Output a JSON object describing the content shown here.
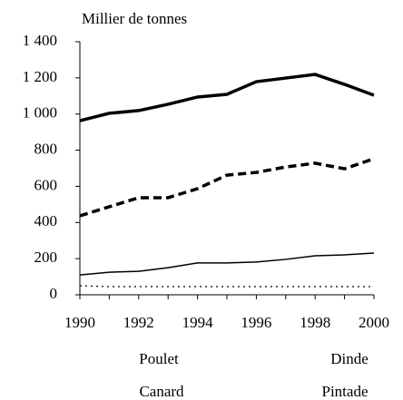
{
  "chart_data": {
    "type": "line",
    "ylabel": "Millier de tonnes",
    "x": [
      1990,
      1991,
      1992,
      1993,
      1994,
      1995,
      1996,
      1997,
      1998,
      1999,
      2000
    ],
    "xlim": [
      1990,
      2000
    ],
    "xticks": [
      1990,
      1992,
      1994,
      1996,
      1998,
      2000
    ],
    "ylim": [
      0,
      1400
    ],
    "yticks": [
      0,
      200,
      400,
      600,
      800,
      {
        "value": 1000,
        "label": "1 000"
      },
      {
        "value": 1200,
        "label": "1 200"
      },
      {
        "value": 1400,
        "label": "1 400"
      }
    ],
    "series": [
      {
        "name": "Poulet",
        "color": "#000000",
        "style": "solid-thick",
        "values": [
          963,
          1004,
          1019,
          1054,
          1094,
          1109,
          1179,
          1199,
          1219,
          1164,
          1104
        ]
      },
      {
        "name": "Dinde",
        "color": "#000000",
        "style": "dashed-thick",
        "values": [
          437,
          487,
          537,
          537,
          587,
          662,
          677,
          707,
          728,
          697,
          753
        ]
      },
      {
        "name": "Canard",
        "color": "#000000",
        "style": "solid-thin",
        "values": [
          110,
          125,
          130,
          150,
          176,
          176,
          181,
          196,
          216,
          221,
          231
        ]
      },
      {
        "name": "Pintade",
        "color": "#000000",
        "style": "dotted-thin",
        "values": [
          50,
          45,
          45,
          45,
          45,
          45,
          45,
          45,
          45,
          45,
          45
        ]
      }
    ]
  }
}
